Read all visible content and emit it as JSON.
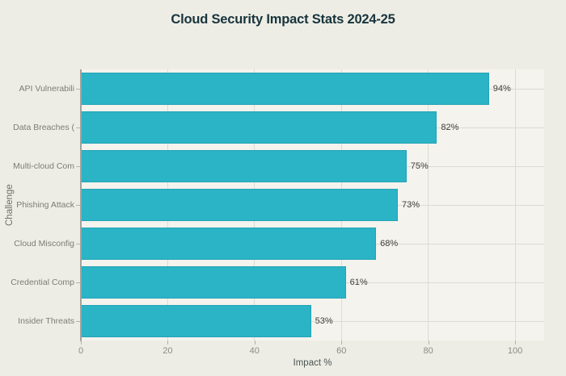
{
  "chart_data": {
    "type": "bar",
    "orientation": "horizontal",
    "title": "Cloud Security Impact Stats 2024-25",
    "categories": [
      "API Vulnerabili",
      "Data Breaches (",
      "Multi-cloud Com",
      "Phishing Attack",
      "Cloud Misconfig",
      "Credential Comp",
      "Insider Threats"
    ],
    "values": [
      94,
      82,
      75,
      73,
      68,
      61,
      53
    ],
    "value_labels": [
      "94%",
      "82%",
      "75%",
      "73%",
      "68%",
      "61%",
      "53%"
    ],
    "xlabel": "Impact %",
    "ylabel": "Challenge",
    "x_ticks": [
      0,
      20,
      40,
      60,
      80,
      100
    ],
    "x_tick_labels": [
      "0",
      "20",
      "40",
      "60",
      "80",
      "100"
    ],
    "xlim": [
      0,
      106.7
    ],
    "grid": true,
    "legend": false,
    "colors": {
      "bar": "#2bb3c6",
      "background": "#eeede5",
      "plot_background": "#f4f3ed",
      "title_text": "#17343c",
      "axis_text": "#7c7b75",
      "value_text": "#3f3f3a",
      "gridline": "#dcdbd3",
      "axis_line": "#a3a29c"
    }
  }
}
